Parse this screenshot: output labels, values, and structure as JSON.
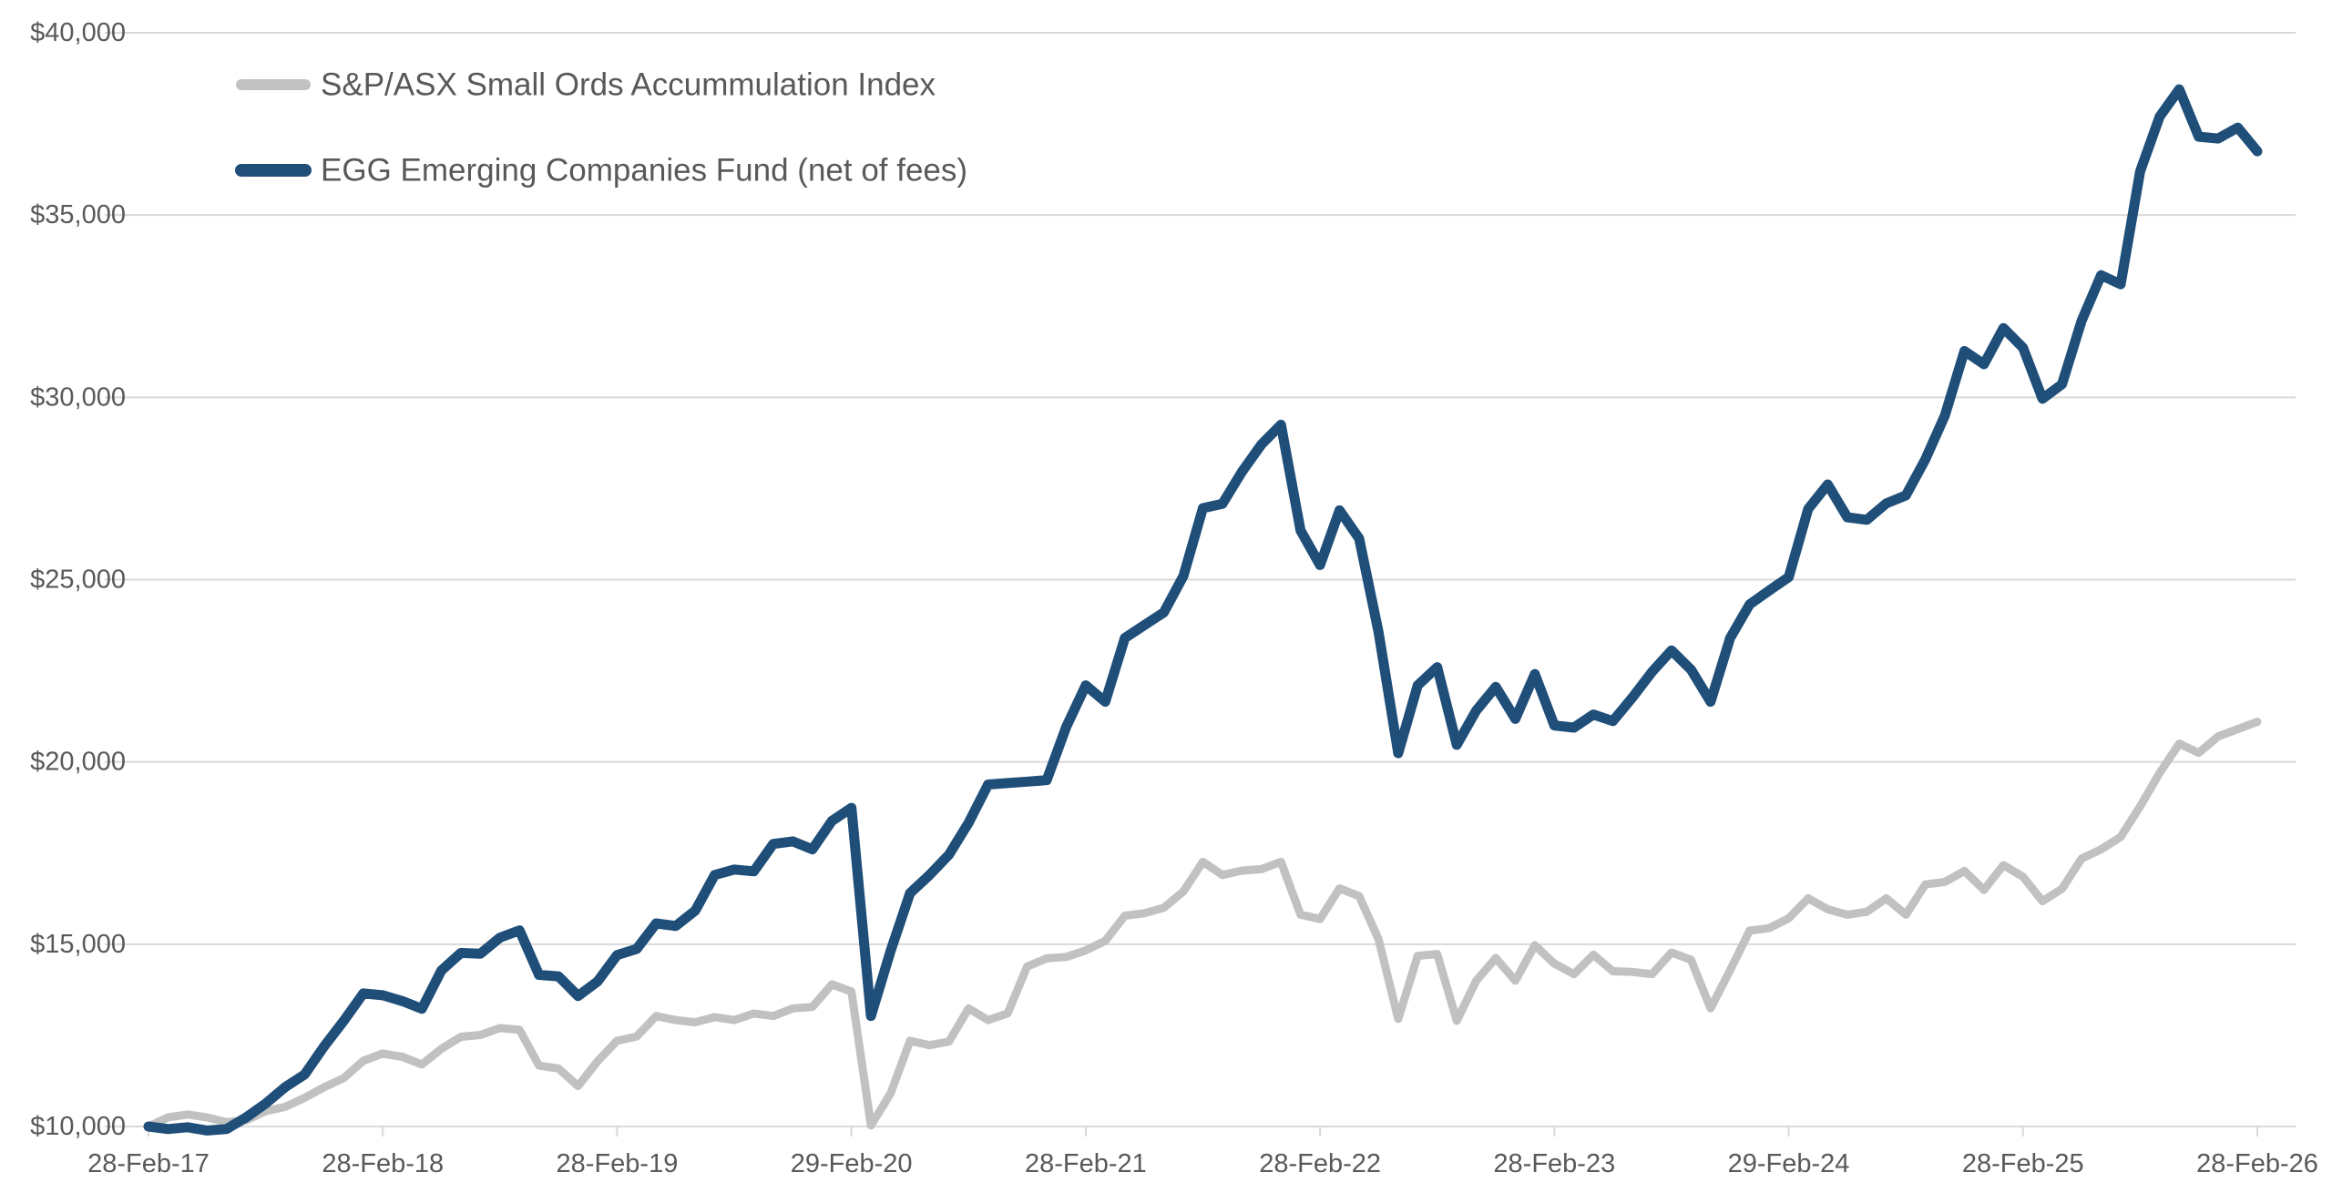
{
  "chart_data": {
    "type": "line",
    "title": "",
    "x_start_label": "28-Feb-17",
    "x_end_label": "28-Feb-26",
    "x_frequency": "monthly",
    "x_tick_labels": [
      "28-Feb-17",
      "28-Feb-18",
      "28-Feb-19",
      "29-Feb-20",
      "28-Feb-21",
      "28-Feb-22",
      "28-Feb-23",
      "29-Feb-24",
      "28-Feb-25",
      "28-Feb-26"
    ],
    "y_tick_labels": [
      "$10,000",
      "$15,000",
      "$20,000",
      "$25,000",
      "$30,000",
      "$35,000",
      "$40,000"
    ],
    "y_tick_values": [
      10000,
      15000,
      20000,
      25000,
      30000,
      35000,
      40000
    ],
    "ylim": [
      10000,
      40000
    ],
    "grid": "horizontal",
    "legend_position": "top-left-inside",
    "series": [
      {
        "name": "S&P/ASX Small Ords Accummulation Index",
        "color": "#C1C1C1",
        "line_width": 9,
        "values": [
          10000,
          10250,
          10330,
          10250,
          10120,
          10170,
          10420,
          10540,
          10790,
          11080,
          11330,
          11800,
          12000,
          11910,
          11700,
          12130,
          12460,
          12510,
          12700,
          12650,
          11670,
          11590,
          11110,
          11790,
          12350,
          12470,
          13030,
          12920,
          12860,
          13000,
          12920,
          13100,
          13030,
          13240,
          13280,
          13900,
          13700,
          10030,
          10900,
          12350,
          12230,
          12330,
          13240,
          12920,
          13100,
          14390,
          14610,
          14650,
          14830,
          15090,
          15780,
          15850,
          16000,
          16450,
          17260,
          16900,
          17020,
          17060,
          17260,
          15810,
          15690,
          16530,
          16320,
          15130,
          12950,
          14680,
          14730,
          12900,
          14000,
          14620,
          14000,
          14970,
          14470,
          14180,
          14710,
          14260,
          14240,
          14180,
          14770,
          14570,
          13240,
          14290,
          15370,
          15440,
          15710,
          16260,
          15960,
          15810,
          15890,
          16260,
          15810,
          16640,
          16710,
          17010,
          16490,
          17170,
          16850,
          16180,
          16520,
          17350,
          17600,
          17940,
          18780,
          19700,
          20500,
          20250,
          20700,
          20900,
          21100
        ]
      },
      {
        "name": "EGG Emerging Companies Fund (net of fees)",
        "color": "#1F4E79",
        "line_width": 11,
        "values": [
          10000,
          9930,
          9980,
          9890,
          9930,
          10250,
          10630,
          11080,
          11430,
          12200,
          12900,
          13650,
          13600,
          13440,
          13230,
          14280,
          14760,
          14740,
          15180,
          15380,
          14160,
          14120,
          13580,
          13980,
          14700,
          14870,
          15570,
          15500,
          15920,
          16900,
          17050,
          17000,
          17750,
          17820,
          17600,
          18380,
          18740,
          13030,
          14800,
          16400,
          16900,
          17460,
          18330,
          19380,
          19420,
          19460,
          19500,
          20960,
          22100,
          21650,
          23400,
          23750,
          24100,
          25100,
          26960,
          27080,
          27960,
          28710,
          29250,
          26350,
          25400,
          26900,
          26130,
          23550,
          20240,
          22100,
          22600,
          20470,
          21410,
          22060,
          21180,
          22410,
          21000,
          20940,
          21300,
          21120,
          21770,
          22470,
          23060,
          22530,
          21650,
          23400,
          24320,
          24700,
          25070,
          26940,
          27610,
          26710,
          26640,
          27090,
          27310,
          28300,
          29500,
          31270,
          30910,
          31900,
          31360,
          29960,
          30360,
          32100,
          33350,
          33100,
          36200,
          37700,
          38450,
          37150,
          37100,
          37400,
          36750
        ]
      }
    ],
    "colors": {
      "gridline": "#D9D9D9",
      "axis_line": "#D9D9D9",
      "tick_mark": "#D9D9D9",
      "axis_text": "#595959",
      "legend_text": "#595959",
      "background": "#FFFFFF"
    }
  }
}
